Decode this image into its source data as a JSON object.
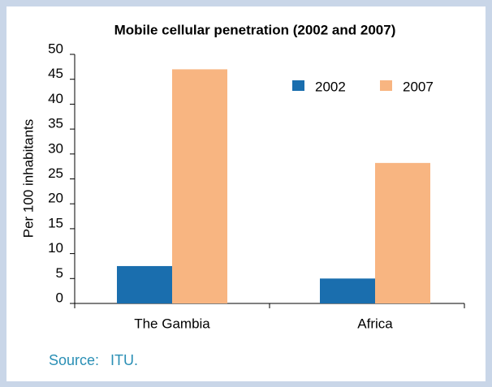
{
  "chart_data": {
    "type": "bar",
    "title": "Mobile cellular penetration (2002 and 2007)",
    "y_label": "Per 100 inhabitants",
    "categories": [
      "The Gambia",
      "Africa"
    ],
    "series": [
      {
        "name": "2002",
        "color": "#1a6eae",
        "values": [
          7.5,
          5
        ]
      },
      {
        "name": "2007",
        "color": "#f8b581",
        "values": [
          47,
          28.2
        ]
      }
    ],
    "ylim": [
      0,
      50
    ],
    "yticks": [
      0,
      5,
      10,
      15,
      20,
      25,
      30,
      35,
      40,
      45,
      50
    ],
    "legend": "top-right",
    "grid": false
  },
  "source": {
    "label": "Source:",
    "text": "ITU."
  }
}
